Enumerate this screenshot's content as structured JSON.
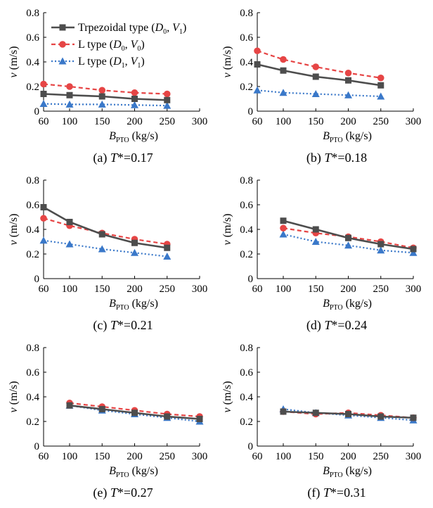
{
  "legend": {
    "entries": [
      {
        "series": "trap",
        "label": "Trpezoidal type (",
        "v1": "D",
        "s1": "0",
        "v2": "V",
        "s2": "1"
      },
      {
        "series": "l0",
        "label": "L type (",
        "v1": "D",
        "s1": "0",
        "v2": "V",
        "s2": "0"
      },
      {
        "series": "l1",
        "label": "L type (",
        "v1": "D",
        "s1": "1",
        "v2": "V",
        "s2": "1"
      }
    ],
    "placement": "top-right of panel a"
  },
  "colors": {
    "trap": "#4d4d4d",
    "l0": "#e64545",
    "l1": "#3a78c9"
  },
  "axis": {
    "ylabel_var": "v",
    "ylabel_unit": " (m/s)",
    "xlabel_var": "B",
    "xlabel_sub": "PTO",
    "xlabel_unit": " (kg/s)"
  },
  "chart_data": [
    {
      "id": "a",
      "type": "line",
      "caption_prefix": "(a) ",
      "caption_var": "T",
      "caption_value": "*=0.17",
      "xlim": [
        60,
        300
      ],
      "ylim": [
        0,
        0.8
      ],
      "xticks": [
        "60",
        "100",
        "150",
        "200",
        "250",
        "300"
      ],
      "xtick_values": [
        60,
        100,
        150,
        200,
        250,
        300
      ],
      "yticks": [
        "0",
        "0.2",
        "0.4",
        "0.6",
        "0.8"
      ],
      "ytick_values": [
        0,
        0.2,
        0.4,
        0.6,
        0.8
      ],
      "x": [
        60,
        100,
        150,
        200,
        250
      ],
      "series": [
        {
          "key": "trap",
          "name": "Trpezoidal type (D0, V1)",
          "values": [
            0.14,
            0.13,
            0.12,
            0.1,
            0.09
          ]
        },
        {
          "key": "l0",
          "name": "L type (D0, V0)",
          "values": [
            0.22,
            0.2,
            0.17,
            0.15,
            0.14
          ]
        },
        {
          "key": "l1",
          "name": "L type (D1, V1)",
          "values": [
            0.06,
            0.055,
            0.055,
            0.05,
            0.045
          ]
        }
      ]
    },
    {
      "id": "b",
      "type": "line",
      "caption_prefix": "(b) ",
      "caption_var": "T",
      "caption_value": "*=0.18",
      "xlim": [
        60,
        300
      ],
      "ylim": [
        0,
        0.8
      ],
      "xticks": [
        "60",
        "100",
        "150",
        "200",
        "250",
        "300"
      ],
      "xtick_values": [
        60,
        100,
        150,
        200,
        250,
        300
      ],
      "yticks": [
        "0",
        "0.2",
        "0.4",
        "0.6",
        "0.8"
      ],
      "ytick_values": [
        0,
        0.2,
        0.4,
        0.6,
        0.8
      ],
      "x": [
        60,
        100,
        150,
        200,
        250
      ],
      "series": [
        {
          "key": "trap",
          "name": "Trpezoidal type (D0, V1)",
          "values": [
            0.38,
            0.33,
            0.28,
            0.25,
            0.21
          ]
        },
        {
          "key": "l0",
          "name": "L type (D0, V0)",
          "values": [
            0.49,
            0.42,
            0.36,
            0.31,
            0.27
          ]
        },
        {
          "key": "l1",
          "name": "L type (D1, V1)",
          "values": [
            0.17,
            0.15,
            0.14,
            0.13,
            0.12
          ]
        }
      ]
    },
    {
      "id": "c",
      "type": "line",
      "caption_prefix": "(c) ",
      "caption_var": "T",
      "caption_value": "*=0.21",
      "xlim": [
        60,
        300
      ],
      "ylim": [
        0,
        0.8
      ],
      "xticks": [
        "60",
        "100",
        "150",
        "200",
        "250",
        "300"
      ],
      "xtick_values": [
        60,
        100,
        150,
        200,
        250,
        300
      ],
      "yticks": [
        "0",
        "0.2",
        "0.4",
        "0.6",
        "0.8"
      ],
      "ytick_values": [
        0,
        0.2,
        0.4,
        0.6,
        0.8
      ],
      "x": [
        60,
        100,
        150,
        200,
        250
      ],
      "series": [
        {
          "key": "trap",
          "name": "Trpezoidal type (D0, V1)",
          "values": [
            0.58,
            0.46,
            0.36,
            0.29,
            0.25
          ]
        },
        {
          "key": "l0",
          "name": "L type (D0, V0)",
          "values": [
            0.49,
            0.43,
            0.37,
            0.32,
            0.28
          ]
        },
        {
          "key": "l1",
          "name": "L type (D1, V1)",
          "values": [
            0.31,
            0.28,
            0.24,
            0.21,
            0.18
          ]
        }
      ]
    },
    {
      "id": "d",
      "type": "line",
      "caption_prefix": "(d) ",
      "caption_var": "T",
      "caption_value": "*=0.24",
      "xlim": [
        60,
        300
      ],
      "ylim": [
        0,
        0.8
      ],
      "xticks": [
        "60",
        "100",
        "150",
        "200",
        "250",
        "300"
      ],
      "xtick_values": [
        60,
        100,
        150,
        200,
        250,
        300
      ],
      "yticks": [
        "0",
        "0.2",
        "0.4",
        "0.6",
        "0.8"
      ],
      "ytick_values": [
        0,
        0.2,
        0.4,
        0.6,
        0.8
      ],
      "x": [
        100,
        150,
        200,
        250,
        300
      ],
      "series": [
        {
          "key": "trap",
          "name": "Trpezoidal type (D0, V1)",
          "values": [
            0.47,
            0.4,
            0.33,
            0.28,
            0.24
          ]
        },
        {
          "key": "l0",
          "name": "L type (D0, V0)",
          "values": [
            0.41,
            0.37,
            0.34,
            0.3,
            0.25
          ]
        },
        {
          "key": "l1",
          "name": "L type (D1, V1)",
          "values": [
            0.36,
            0.3,
            0.27,
            0.23,
            0.21
          ]
        }
      ]
    },
    {
      "id": "e",
      "type": "line",
      "caption_prefix": "(e) ",
      "caption_var": "T",
      "caption_value": "*=0.27",
      "xlim": [
        60,
        300
      ],
      "ylim": [
        0,
        0.8
      ],
      "xticks": [
        "60",
        "100",
        "150",
        "200",
        "250",
        "300"
      ],
      "xtick_values": [
        60,
        100,
        150,
        200,
        250,
        300
      ],
      "yticks": [
        "0",
        "0.2",
        "0.4",
        "0.6",
        "0.8"
      ],
      "ytick_values": [
        0,
        0.2,
        0.4,
        0.6,
        0.8
      ],
      "x": [
        100,
        150,
        200,
        250,
        300
      ],
      "series": [
        {
          "key": "trap",
          "name": "Trpezoidal type (D0, V1)",
          "values": [
            0.33,
            0.3,
            0.27,
            0.24,
            0.22
          ]
        },
        {
          "key": "l0",
          "name": "L type (D0, V0)",
          "values": [
            0.35,
            0.32,
            0.29,
            0.26,
            0.24
          ]
        },
        {
          "key": "l1",
          "name": "L type (D1, V1)",
          "values": [
            0.33,
            0.29,
            0.26,
            0.23,
            0.2
          ]
        }
      ]
    },
    {
      "id": "f",
      "type": "line",
      "caption_prefix": "(f) ",
      "caption_var": "T",
      "caption_value": "*=0.31",
      "xlim": [
        60,
        300
      ],
      "ylim": [
        0,
        0.8
      ],
      "xticks": [
        "60",
        "100",
        "150",
        "200",
        "250",
        "300"
      ],
      "xtick_values": [
        60,
        100,
        150,
        200,
        250,
        300
      ],
      "yticks": [
        "0",
        "0.2",
        "0.4",
        "0.6",
        "0.8"
      ],
      "ytick_values": [
        0,
        0.2,
        0.4,
        0.6,
        0.8
      ],
      "x": [
        100,
        150,
        200,
        250,
        300
      ],
      "series": [
        {
          "key": "trap",
          "name": "Trpezoidal type (D0, V1)",
          "values": [
            0.28,
            0.27,
            0.26,
            0.24,
            0.23
          ]
        },
        {
          "key": "l0",
          "name": "L type (D0, V0)",
          "values": [
            0.28,
            0.26,
            0.27,
            0.25,
            0.23
          ]
        },
        {
          "key": "l1",
          "name": "L type (D1, V1)",
          "values": [
            0.3,
            0.27,
            0.25,
            0.23,
            0.21
          ]
        }
      ]
    }
  ]
}
